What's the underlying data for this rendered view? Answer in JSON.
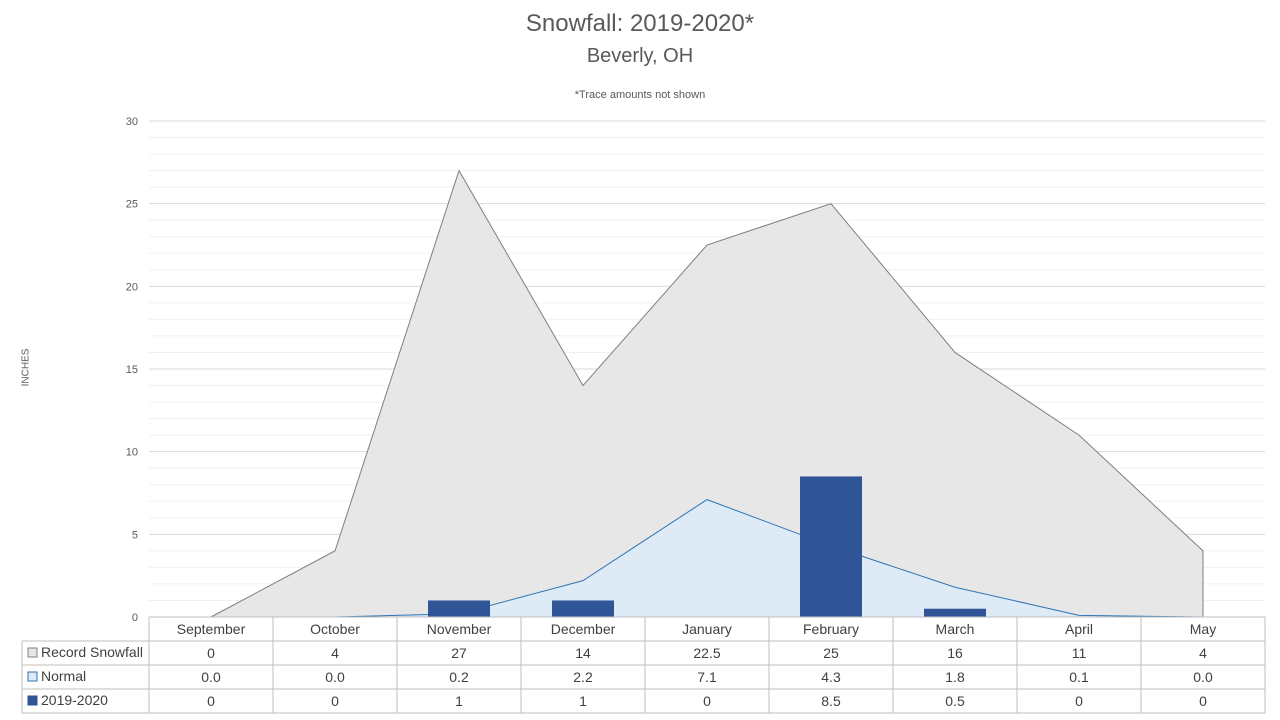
{
  "chart_data": {
    "type": "area",
    "title": "Snowfall: 2019-2020*",
    "subtitle": "Beverly, OH",
    "note": "*Trace amounts not shown",
    "ylabel": "INCHES",
    "ylim": [
      0,
      30
    ],
    "yticks": [
      "0",
      "5",
      "10",
      "15",
      "20",
      "25",
      "30"
    ],
    "grid": true,
    "categories": [
      "September",
      "October",
      "November",
      "December",
      "January",
      "February",
      "March",
      "April",
      "May"
    ],
    "series": [
      {
        "name": "Record Snowfall",
        "kind": "area",
        "color": "#e7e7e7",
        "line": "#7f7f7f",
        "values": [
          0,
          4,
          27,
          14,
          22.5,
          25,
          16,
          11,
          4
        ],
        "labels": [
          "0",
          "4",
          "27",
          "14",
          "22.5",
          "25",
          "16",
          "11",
          "4"
        ]
      },
      {
        "name": "Normal",
        "kind": "area",
        "color": "#deebf7",
        "line": "#2e75b6",
        "values": [
          0.0,
          0.0,
          0.2,
          2.2,
          7.1,
          4.3,
          1.8,
          0.1,
          0.0
        ],
        "labels": [
          "0.0",
          "0.0",
          "0.2",
          "2.2",
          "7.1",
          "4.3",
          "1.8",
          "0.1",
          "0.0"
        ]
      },
      {
        "name": "2019-2020",
        "kind": "bar",
        "color": "#2f5597",
        "line": "#2f5597",
        "values": [
          0,
          0,
          1,
          1,
          0,
          8.5,
          0.5,
          0,
          0
        ],
        "labels": [
          "0",
          "0",
          "1",
          "1",
          "0",
          "8.5",
          "0.5",
          "0",
          "0"
        ]
      }
    ]
  }
}
